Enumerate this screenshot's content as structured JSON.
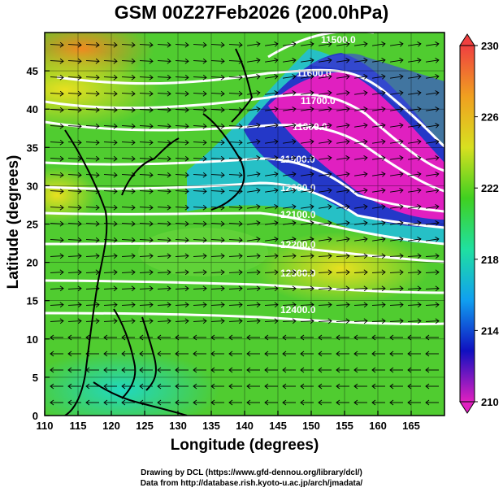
{
  "title": "GSM 00Z27Feb2026 (200.0hPa)",
  "footer": {
    "line1": "Drawing by DCL (https://www.gfd-dennou.org/library/dcl/)",
    "line2": "Data from http://database.rish.kyoto-u.ac.jp/arch/jmadata/"
  },
  "chart_data": {
    "type": "heatmap",
    "xlabel": "Longitude (degrees)",
    "ylabel": "Latitude  (degrees)",
    "xlim": [
      110,
      170
    ],
    "ylim": [
      0,
      50
    ],
    "x_ticks": [
      "110",
      "115",
      "120",
      "125",
      "130",
      "135",
      "140",
      "145",
      "150",
      "155",
      "160",
      "165"
    ],
    "y_ticks": [
      "0",
      "5",
      "10",
      "15",
      "20",
      "25",
      "30",
      "35",
      "40",
      "45"
    ],
    "colorbar": {
      "range": [
        210,
        230
      ],
      "ticks": [
        "210",
        "214",
        "218",
        "222",
        "226",
        "230"
      ],
      "stops": [
        "#e020c0",
        "#1010c0",
        "#10a0f0",
        "#20e0a0",
        "#40d020",
        "#d8e020",
        "#f0a020",
        "#f04040"
      ]
    },
    "contour_labels": [
      "11500.0",
      "11600.0",
      "11700.0",
      "11800.0",
      "11900.0",
      "12000.0",
      "12100.0",
      "12200.0",
      "12300.0",
      "12400.0"
    ]
  }
}
